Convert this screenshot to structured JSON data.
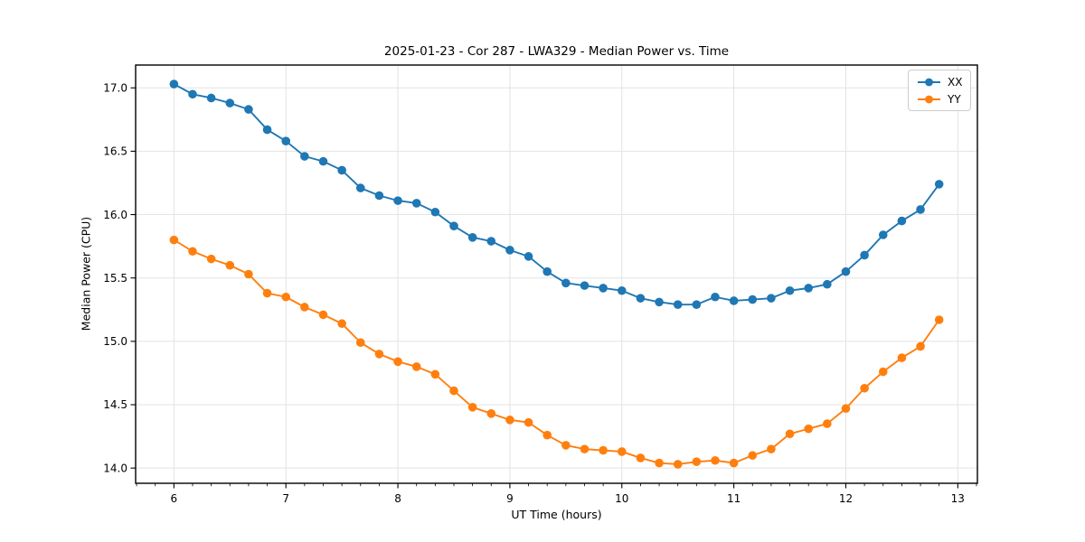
{
  "chart_data": {
    "type": "line",
    "title": "2025-01-23 - Cor 287 - LWA329 - Median Power vs. Time",
    "xlabel": "UT Time (hours)",
    "ylabel": "Median Power (CPU)",
    "xlim": [
      5.658,
      13.175
    ],
    "ylim": [
      13.88,
      17.18
    ],
    "grid": true,
    "grid_color": "#e3e3e3",
    "legend_position": "upper right",
    "x_tick_values": [
      6,
      7,
      8,
      9,
      10,
      11,
      12,
      13
    ],
    "x_tick_labels": [
      "6",
      "7",
      "8",
      "9",
      "10",
      "11",
      "12",
      "13"
    ],
    "x_minor_step": 0.1666667,
    "y_tick_values": [
      14.0,
      14.5,
      15.0,
      15.5,
      16.0,
      16.5,
      17.0
    ],
    "y_tick_labels": [
      "14.0",
      "14.5",
      "15.0",
      "15.5",
      "16.0",
      "16.5",
      "17.0"
    ],
    "x": [
      6.0,
      6.1667,
      6.3333,
      6.5,
      6.6667,
      6.8333,
      7.0,
      7.1667,
      7.3333,
      7.5,
      7.6667,
      7.8333,
      8.0,
      8.1667,
      8.3333,
      8.5,
      8.6667,
      8.8333,
      9.0,
      9.1667,
      9.3333,
      9.5,
      9.6667,
      9.8333,
      10.0,
      10.1667,
      10.3333,
      10.5,
      10.6667,
      10.8333,
      11.0,
      11.1667,
      11.3333,
      11.5,
      11.6667,
      11.8333,
      12.0,
      12.1667,
      12.3333,
      12.5,
      12.6667,
      12.8333
    ],
    "series": [
      {
        "name": "XX",
        "color": "#1f77b4",
        "marker": "circle",
        "values": [
          17.03,
          16.95,
          16.92,
          16.88,
          16.83,
          16.67,
          16.58,
          16.46,
          16.42,
          16.35,
          16.21,
          16.15,
          16.11,
          16.09,
          16.02,
          15.91,
          15.82,
          15.79,
          15.72,
          15.67,
          15.55,
          15.46,
          15.44,
          15.42,
          15.4,
          15.34,
          15.31,
          15.29,
          15.29,
          15.35,
          15.32,
          15.33,
          15.34,
          15.4,
          15.42,
          15.45,
          15.55,
          15.68,
          15.84,
          15.95,
          16.04,
          16.24
        ]
      },
      {
        "name": "YY",
        "color": "#ff7f0e",
        "marker": "circle",
        "values": [
          15.8,
          15.71,
          15.65,
          15.6,
          15.53,
          15.38,
          15.35,
          15.27,
          15.21,
          15.14,
          14.99,
          14.9,
          14.84,
          14.8,
          14.74,
          14.61,
          14.48,
          14.43,
          14.38,
          14.36,
          14.26,
          14.18,
          14.15,
          14.14,
          14.13,
          14.08,
          14.04,
          14.03,
          14.05,
          14.06,
          14.04,
          14.1,
          14.15,
          14.27,
          14.31,
          14.35,
          14.47,
          14.63,
          14.76,
          14.87,
          14.96,
          15.17
        ]
      }
    ]
  }
}
